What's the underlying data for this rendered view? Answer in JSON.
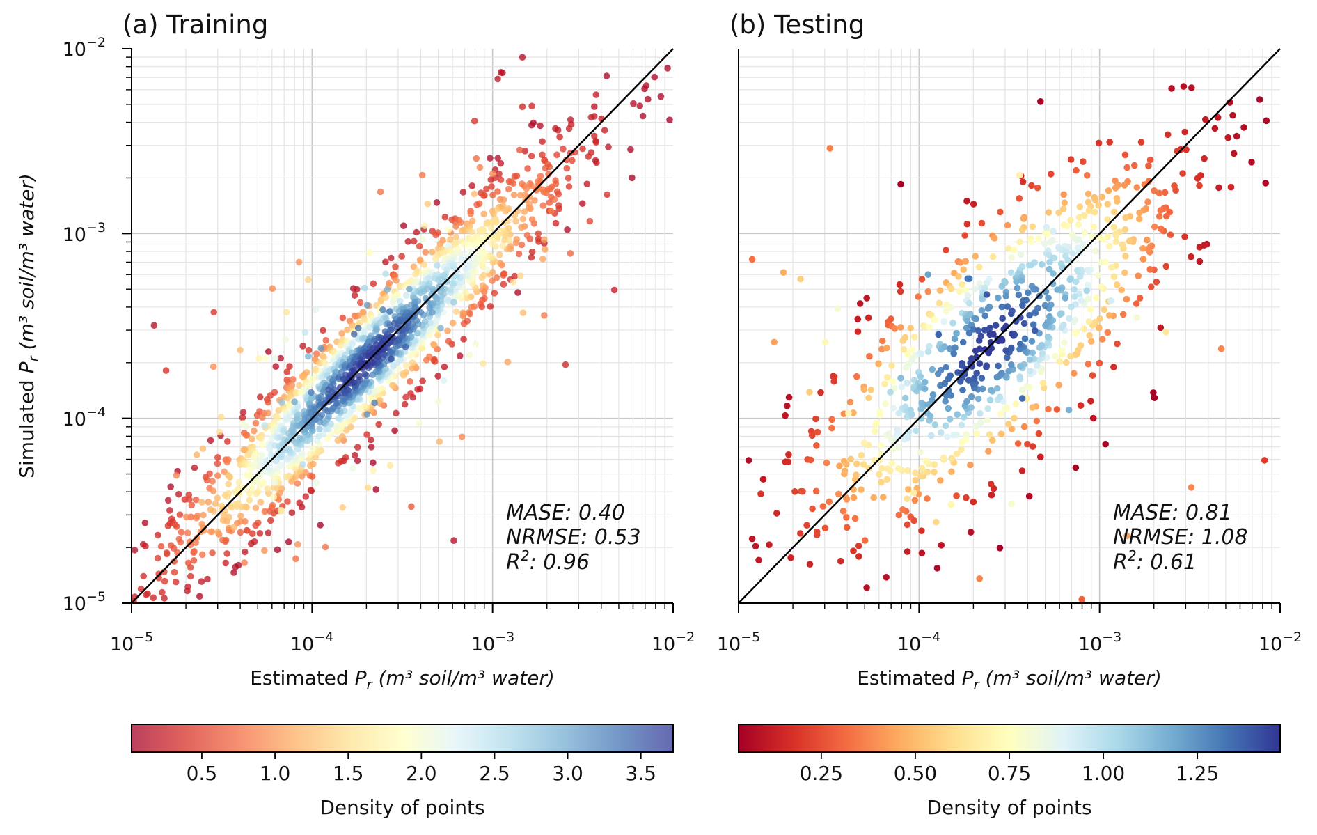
{
  "chart_data": [
    {
      "type": "scatter",
      "title": "(a) Training",
      "xlabel": {
        "prefix": "Estimated ",
        "symbol": "P",
        "sub": "r",
        "units": "(m³ soil/m³ water)"
      },
      "ylabel": {
        "prefix": "Simulated ",
        "symbol": "P",
        "sub": "r",
        "units": "(m³ soil/m³ water)"
      },
      "x_scale": "log",
      "y_scale": "log",
      "xlim": [
        1e-05,
        0.01
      ],
      "ylim": [
        1e-05,
        0.01
      ],
      "x_ticks": [
        {
          "base": "10",
          "exp": "−5"
        },
        {
          "base": "10",
          "exp": "−4"
        },
        {
          "base": "10",
          "exp": "−3"
        },
        {
          "base": "10",
          "exp": "−2"
        }
      ],
      "y_ticks": [
        {
          "base": "10",
          "exp": "−5"
        },
        {
          "base": "10",
          "exp": "−4"
        },
        {
          "base": "10",
          "exp": "−3"
        },
        {
          "base": "10",
          "exp": "−2"
        }
      ],
      "grid": true,
      "reference_line": "1:1",
      "annotations": {
        "mase": "MASE: 0.40",
        "nrmse": "NRMSE: 0.53",
        "r2_label": "R",
        "r2_value": ": 0.96"
      },
      "point_cloud": {
        "n_points": 1800,
        "center_log10": -3.7,
        "spread_along_log10": 0.55,
        "spread_across_log10": 0.13,
        "outlier_fraction": 0.08
      },
      "colormap": "RdYlBu",
      "point_alpha": 0.78,
      "colorbar": {
        "label": "Density of points",
        "min": 0.02,
        "max": 3.72,
        "ticks": [
          "0.5",
          "1.0",
          "1.5",
          "2.0",
          "2.5",
          "3.0",
          "3.5"
        ],
        "tick_values": [
          0.5,
          1.0,
          1.5,
          2.0,
          2.5,
          3.0,
          3.5
        ]
      }
    },
    {
      "type": "scatter",
      "title": "(b) Testing",
      "xlabel": {
        "prefix": "Estimated ",
        "symbol": "P",
        "sub": "r",
        "units": "(m³ soil/m³ water)"
      },
      "x_scale": "log",
      "y_scale": "log",
      "xlim": [
        1e-05,
        0.01
      ],
      "ylim": [
        1e-05,
        0.01
      ],
      "x_ticks": [
        {
          "base": "10",
          "exp": "−5"
        },
        {
          "base": "10",
          "exp": "−4"
        },
        {
          "base": "10",
          "exp": "−3"
        },
        {
          "base": "10",
          "exp": "−2"
        }
      ],
      "grid": true,
      "reference_line": "1:1",
      "annotations": {
        "mase": "MASE: 0.81",
        "nrmse": "NRMSE: 1.08",
        "r2_label": "R",
        "r2_value": ": 0.61"
      },
      "point_cloud": {
        "n_points": 900,
        "center_log10": -3.6,
        "spread_along_log10": 0.5,
        "spread_across_log10": 0.27,
        "outlier_fraction": 0.06
      },
      "colormap": "RdYlBu",
      "point_alpha": 1.0,
      "colorbar": {
        "label": "Density of points",
        "min": 0.03,
        "max": 1.47,
        "ticks": [
          "0.25",
          "0.50",
          "0.75",
          "1.00",
          "1.25"
        ],
        "tick_values": [
          0.25,
          0.5,
          0.75,
          1.0,
          1.25
        ]
      }
    }
  ]
}
